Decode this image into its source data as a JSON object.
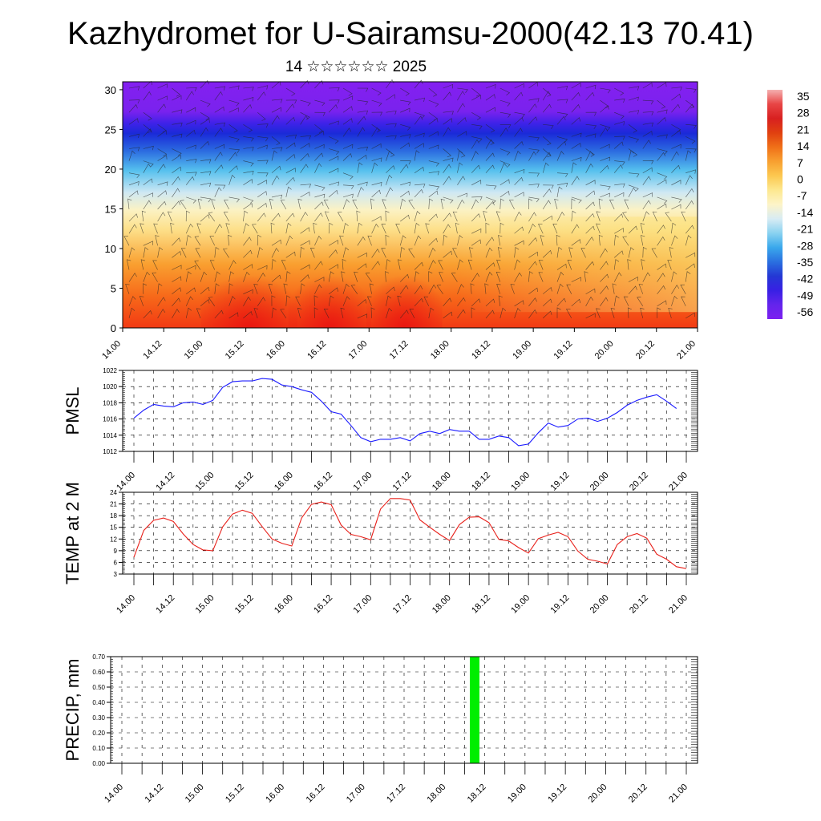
{
  "title": "Kazhydromet for U-Sairamsu-2000(42.13 70.41)",
  "subtitle": "14 ☆☆☆☆☆☆ 2025",
  "colors": {
    "pmsl_line": "#1a1aff",
    "temp_line": "#e8201a",
    "precip_bar": "#00ee00"
  },
  "chart_data": [
    {
      "type": "heatmap",
      "title": "",
      "description_of_content": "vertical cross-section colour field with wind barbs",
      "x_ticks": [
        "14.00",
        "14.12",
        "15.00",
        "15.12",
        "16.00",
        "16.12",
        "17.00",
        "17.12",
        "18.00",
        "18.12",
        "19.00",
        "19.12",
        "20.00",
        "20.12",
        "21.00"
      ],
      "y_ticks": [
        "0",
        "5",
        "10",
        "15",
        "20",
        "25",
        "30"
      ],
      "ylim": [
        0,
        31
      ],
      "colorbar_labels": [
        "35",
        "28",
        "21",
        "14",
        "7",
        "0",
        "-7",
        "-14",
        "-21",
        "-28",
        "-35",
        "-42",
        "-49",
        "-56"
      ]
    },
    {
      "type": "line",
      "ylabel": "PMSL",
      "x_ticks": [
        "14.00",
        "14.12",
        "15.00",
        "15.12",
        "16.00",
        "16.12",
        "17.00",
        "17.12",
        "18.00",
        "18.12",
        "19.00",
        "19.12",
        "20.00",
        "20.12",
        "21.00"
      ],
      "y_ticks": [
        "1022",
        "1020",
        "1018",
        "1016",
        "1014",
        "1012"
      ],
      "ylim": [
        1012,
        1022
      ],
      "grid": true,
      "series": [
        {
          "x": [
            0,
            3,
            6,
            9,
            12,
            15,
            18,
            21,
            24,
            27,
            30,
            33,
            36,
            39,
            42,
            45,
            48,
            51,
            54,
            57,
            60,
            63,
            66,
            69,
            72,
            75,
            78,
            81,
            84,
            87,
            90,
            93,
            96,
            99,
            102,
            105,
            108,
            111,
            114,
            117,
            120,
            123,
            126,
            129,
            132,
            135,
            138,
            141,
            144,
            147,
            150,
            153,
            156,
            159,
            162,
            165
          ],
          "values": [
            1016.1,
            1017.1,
            1017.8,
            1017.6,
            1017.5,
            1018.0,
            1018.1,
            1017.8,
            1018.3,
            1019.9,
            1020.6,
            1020.7,
            1020.7,
            1021.0,
            1020.9,
            1020.2,
            1020.0,
            1019.6,
            1019.3,
            1018.2,
            1016.9,
            1016.6,
            1015.2,
            1013.7,
            1013.2,
            1013.5,
            1013.5,
            1013.7,
            1013.3,
            1014.2,
            1014.5,
            1014.2,
            1014.7,
            1014.5,
            1014.5,
            1013.5,
            1013.5,
            1013.9,
            1013.7,
            1012.7,
            1012.9,
            1014.3,
            1015.5,
            1015.0,
            1015.2,
            1016.0,
            1016.1,
            1015.7,
            1016.1,
            1016.8,
            1017.7,
            1018.3,
            1018.7,
            1019.0,
            1018.2,
            1017.3
          ]
        }
      ]
    },
    {
      "type": "line",
      "ylabel": "TEMP at 2 M",
      "x_ticks": [
        "14.00",
        "14.12",
        "15.00",
        "15.12",
        "16.00",
        "16.12",
        "17.00",
        "17.12",
        "18.00",
        "18.12",
        "19.00",
        "19.12",
        "20.00",
        "20.12",
        "21.00"
      ],
      "y_ticks": [
        "24",
        "21",
        "18",
        "15",
        "12",
        "9",
        "6",
        "3"
      ],
      "ylim": [
        3,
        24
      ],
      "grid": true,
      "series": [
        {
          "x": [
            0,
            3,
            6,
            9,
            12,
            15,
            18,
            21,
            24,
            27,
            30,
            33,
            36,
            39,
            42,
            45,
            48,
            51,
            54,
            57,
            60,
            63,
            66,
            69,
            72,
            75,
            78,
            81,
            84,
            87,
            90,
            93,
            96,
            99,
            102,
            105,
            108,
            111,
            114,
            117,
            120,
            123,
            126,
            129,
            132,
            135,
            138,
            141,
            144,
            147,
            150,
            153,
            156,
            159,
            162,
            165,
            168
          ],
          "values": [
            7.3,
            14.2,
            16.8,
            17.4,
            16.5,
            13.3,
            10.6,
            9.2,
            9.0,
            15.1,
            18.4,
            19.4,
            18.6,
            15.2,
            12.0,
            10.9,
            10.2,
            17.4,
            20.9,
            21.5,
            20.8,
            15.6,
            13.2,
            12.6,
            11.8,
            19.7,
            22.4,
            22.4,
            22.0,
            16.9,
            15.0,
            13.2,
            11.6,
            15.7,
            17.6,
            17.7,
            16.2,
            11.9,
            11.5,
            9.8,
            8.4,
            12.1,
            13.0,
            13.7,
            12.6,
            8.9,
            6.8,
            6.3,
            5.6,
            10.6,
            12.6,
            13.4,
            12.2,
            8.1,
            6.8,
            4.9,
            4.4
          ]
        }
      ]
    },
    {
      "type": "bar",
      "ylabel": "PRECIP, mm",
      "x_ticks": [
        "14.00",
        "14.12",
        "15.00",
        "15.12",
        "16.00",
        "16.12",
        "17.00",
        "17.12",
        "18.00",
        "18.12",
        "19.00",
        "19.12",
        "20.00",
        "20.12",
        "21.00"
      ],
      "y_ticks": [
        "0.70",
        "0.60",
        "0.50",
        "0.40",
        "0.30",
        "0.20",
        "0.10",
        "0.00"
      ],
      "ylim": [
        0,
        0.7
      ],
      "grid": true,
      "bars": [
        {
          "x": 105,
          "value": 0.7
        }
      ]
    }
  ]
}
